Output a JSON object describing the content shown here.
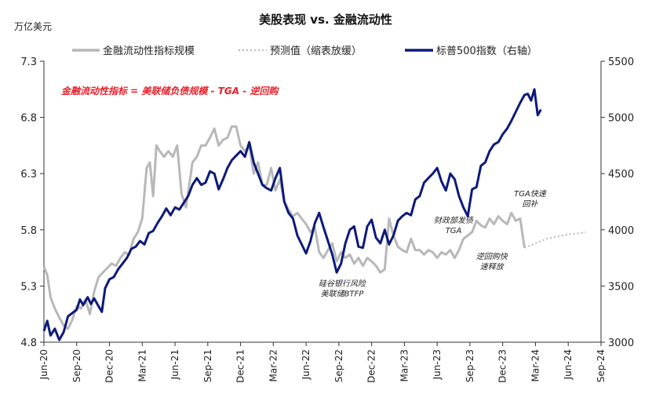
{
  "chart_data": {
    "type": "line",
    "title": "美股表现 vs. 金融流动性",
    "ylabel_left": "万亿美元",
    "legend": [
      "金融流动性指标规模",
      "预测值（缩表放缓）",
      "标普500指数（右轴）"
    ],
    "formula": "金融流动性指标 = 美联储负债规模 - TGA - 逆回购",
    "x_tick_labels": [
      "Jun-20",
      "Sep-20",
      "Dec-20",
      "Mar-21",
      "Jun-21",
      "Sep-21",
      "Dec-21",
      "Mar-22",
      "Jun-22",
      "Sep-22",
      "Dec-22",
      "Mar-23",
      "Jun-23",
      "Sep-23",
      "Dec-23",
      "Mar-24",
      "Jun-24",
      "Sep-24"
    ],
    "y_left": {
      "min": 4.8,
      "max": 7.3,
      "ticks": [
        "4.8",
        "5.3",
        "5.8",
        "6.3",
        "6.8",
        "7.3"
      ]
    },
    "y_right": {
      "min": 3000,
      "max": 5500,
      "ticks": [
        "3000",
        "3500",
        "4000",
        "4500",
        "5000",
        "5500"
      ]
    },
    "x_range_months": [
      0,
      51
    ],
    "series": [
      {
        "name": "金融流动性指标规模",
        "axis": "left",
        "points": [
          [
            0,
            5.47
          ],
          [
            0.3,
            5.4
          ],
          [
            0.6,
            5.2
          ],
          [
            1.0,
            5.1
          ],
          [
            1.4,
            5.02
          ],
          [
            1.8,
            4.95
          ],
          [
            2.2,
            4.92
          ],
          [
            2.6,
            5.0
          ],
          [
            3.0,
            5.12
          ],
          [
            3.4,
            5.1
          ],
          [
            3.8,
            5.18
          ],
          [
            4.2,
            5.05
          ],
          [
            4.6,
            5.25
          ],
          [
            5.0,
            5.38
          ],
          [
            5.4,
            5.42
          ],
          [
            5.8,
            5.46
          ],
          [
            6.2,
            5.5
          ],
          [
            6.6,
            5.48
          ],
          [
            7.0,
            5.55
          ],
          [
            7.4,
            5.6
          ],
          [
            7.8,
            5.58
          ],
          [
            8.2,
            5.72
          ],
          [
            8.6,
            5.78
          ],
          [
            9.0,
            5.9
          ],
          [
            9.4,
            6.35
          ],
          [
            9.7,
            6.4
          ],
          [
            10.0,
            6.1
          ],
          [
            10.3,
            6.55
          ],
          [
            10.6,
            6.5
          ],
          [
            11.0,
            6.45
          ],
          [
            11.4,
            6.5
          ],
          [
            11.8,
            6.45
          ],
          [
            12.2,
            6.55
          ],
          [
            12.6,
            6.12
          ],
          [
            13.0,
            6.0
          ],
          [
            13.3,
            6.2
          ],
          [
            13.6,
            6.4
          ],
          [
            14.0,
            6.45
          ],
          [
            14.4,
            6.55
          ],
          [
            14.8,
            6.55
          ],
          [
            15.2,
            6.62
          ],
          [
            15.6,
            6.7
          ],
          [
            16.0,
            6.55
          ],
          [
            16.4,
            6.6
          ],
          [
            16.8,
            6.62
          ],
          [
            17.2,
            6.72
          ],
          [
            17.6,
            6.72
          ],
          [
            18.0,
            6.55
          ],
          [
            18.4,
            6.5
          ],
          [
            18.8,
            6.55
          ],
          [
            19.2,
            6.3
          ],
          [
            19.6,
            6.4
          ],
          [
            20.0,
            6.2
          ],
          [
            20.4,
            6.2
          ],
          [
            20.8,
            6.35
          ],
          [
            21.2,
            6.15
          ],
          [
            21.6,
            6.25
          ],
          [
            22.0,
            6.05
          ],
          [
            22.4,
            5.98
          ],
          [
            22.8,
            5.92
          ],
          [
            23.2,
            5.95
          ],
          [
            23.6,
            5.9
          ],
          [
            24.0,
            5.85
          ],
          [
            24.4,
            5.78
          ],
          [
            24.8,
            5.82
          ],
          [
            25.2,
            5.6
          ],
          [
            25.6,
            5.55
          ],
          [
            26.0,
            5.62
          ],
          [
            26.4,
            5.68
          ],
          [
            26.8,
            5.52
          ],
          [
            27.2,
            5.6
          ],
          [
            27.6,
            5.55
          ],
          [
            28.0,
            5.58
          ],
          [
            28.4,
            5.5
          ],
          [
            28.8,
            5.55
          ],
          [
            29.2,
            5.48
          ],
          [
            29.6,
            5.55
          ],
          [
            30.0,
            5.52
          ],
          [
            30.4,
            5.48
          ],
          [
            30.8,
            5.42
          ],
          [
            31.2,
            5.45
          ],
          [
            31.6,
            5.9
          ],
          [
            32.0,
            5.75
          ],
          [
            32.4,
            5.65
          ],
          [
            32.8,
            5.62
          ],
          [
            33.2,
            5.6
          ],
          [
            33.6,
            5.72
          ],
          [
            34.0,
            5.62
          ],
          [
            34.4,
            5.62
          ],
          [
            34.8,
            5.58
          ],
          [
            35.2,
            5.62
          ],
          [
            35.6,
            5.6
          ],
          [
            36.0,
            5.55
          ],
          [
            36.4,
            5.6
          ],
          [
            36.8,
            5.58
          ],
          [
            37.2,
            5.62
          ],
          [
            37.6,
            5.55
          ],
          [
            38.0,
            5.62
          ],
          [
            38.4,
            5.72
          ],
          [
            38.8,
            5.75
          ],
          [
            39.2,
            5.78
          ],
          [
            39.6,
            5.88
          ],
          [
            40.0,
            5.84
          ],
          [
            40.4,
            5.82
          ],
          [
            40.8,
            5.9
          ],
          [
            41.2,
            5.85
          ],
          [
            41.6,
            5.92
          ],
          [
            42.0,
            5.88
          ],
          [
            42.4,
            5.85
          ],
          [
            42.8,
            5.95
          ],
          [
            43.2,
            5.88
          ],
          [
            43.6,
            5.9
          ],
          [
            44.0,
            5.64
          ]
        ]
      },
      {
        "name": "预测值（缩表放缓）",
        "axis": "left",
        "points": [
          [
            44.0,
            5.64
          ],
          [
            45.0,
            5.68
          ],
          [
            46.0,
            5.72
          ],
          [
            47.0,
            5.74
          ],
          [
            48.0,
            5.76
          ],
          [
            49.0,
            5.77
          ],
          [
            49.6,
            5.78
          ]
        ]
      },
      {
        "name": "标普500指数（右轴）",
        "axis": "right",
        "points": [
          [
            0,
            3100
          ],
          [
            0.3,
            3190
          ],
          [
            0.6,
            3060
          ],
          [
            1.0,
            3120
          ],
          [
            1.4,
            3020
          ],
          [
            1.8,
            3090
          ],
          [
            2.2,
            3230
          ],
          [
            2.6,
            3260
          ],
          [
            3.0,
            3290
          ],
          [
            3.3,
            3380
          ],
          [
            3.6,
            3330
          ],
          [
            4.0,
            3400
          ],
          [
            4.3,
            3340
          ],
          [
            4.6,
            3390
          ],
          [
            5.0,
            3320
          ],
          [
            5.3,
            3270
          ],
          [
            5.6,
            3480
          ],
          [
            6.0,
            3560
          ],
          [
            6.4,
            3580
          ],
          [
            6.8,
            3650
          ],
          [
            7.2,
            3700
          ],
          [
            7.6,
            3750
          ],
          [
            8.0,
            3830
          ],
          [
            8.4,
            3850
          ],
          [
            8.8,
            3900
          ],
          [
            9.2,
            3870
          ],
          [
            9.6,
            3970
          ],
          [
            10.0,
            3990
          ],
          [
            10.4,
            4060
          ],
          [
            10.8,
            4120
          ],
          [
            11.2,
            4190
          ],
          [
            11.6,
            4130
          ],
          [
            12.0,
            4200
          ],
          [
            12.4,
            4180
          ],
          [
            12.8,
            4240
          ],
          [
            13.2,
            4300
          ],
          [
            13.6,
            4400
          ],
          [
            14.0,
            4460
          ],
          [
            14.4,
            4400
          ],
          [
            14.8,
            4420
          ],
          [
            15.2,
            4520
          ],
          [
            15.6,
            4500
          ],
          [
            16.0,
            4360
          ],
          [
            16.4,
            4450
          ],
          [
            16.8,
            4550
          ],
          [
            17.2,
            4620
          ],
          [
            17.6,
            4660
          ],
          [
            18.0,
            4700
          ],
          [
            18.4,
            4650
          ],
          [
            18.8,
            4780
          ],
          [
            19.2,
            4600
          ],
          [
            19.6,
            4500
          ],
          [
            20.0,
            4400
          ],
          [
            20.4,
            4370
          ],
          [
            20.8,
            4350
          ],
          [
            21.2,
            4460
          ],
          [
            21.6,
            4550
          ],
          [
            22.0,
            4250
          ],
          [
            22.4,
            4150
          ],
          [
            22.8,
            4100
          ],
          [
            23.2,
            3950
          ],
          [
            23.6,
            3870
          ],
          [
            24.0,
            3790
          ],
          [
            24.4,
            3900
          ],
          [
            24.8,
            4060
          ],
          [
            25.2,
            4150
          ],
          [
            25.6,
            4020
          ],
          [
            26.0,
            3900
          ],
          [
            26.4,
            3780
          ],
          [
            26.8,
            3620
          ],
          [
            27.2,
            3700
          ],
          [
            27.6,
            3880
          ],
          [
            28.0,
            4000
          ],
          [
            28.4,
            4030
          ],
          [
            28.8,
            3850
          ],
          [
            29.2,
            3840
          ],
          [
            29.6,
            4030
          ],
          [
            30.0,
            4090
          ],
          [
            30.4,
            3930
          ],
          [
            30.8,
            3880
          ],
          [
            31.2,
            4000
          ],
          [
            31.6,
            3870
          ],
          [
            32.0,
            3950
          ],
          [
            32.4,
            4080
          ],
          [
            32.8,
            4120
          ],
          [
            33.2,
            4150
          ],
          [
            33.6,
            4130
          ],
          [
            34.0,
            4270
          ],
          [
            34.4,
            4300
          ],
          [
            34.8,
            4420
          ],
          [
            35.2,
            4460
          ],
          [
            35.6,
            4500
          ],
          [
            36.0,
            4550
          ],
          [
            36.4,
            4430
          ],
          [
            36.8,
            4350
          ],
          [
            37.2,
            4500
          ],
          [
            37.6,
            4450
          ],
          [
            38.0,
            4300
          ],
          [
            38.4,
            4200
          ],
          [
            38.8,
            4120
          ],
          [
            39.2,
            4360
          ],
          [
            39.6,
            4380
          ],
          [
            40.0,
            4570
          ],
          [
            40.4,
            4600
          ],
          [
            40.8,
            4700
          ],
          [
            41.2,
            4760
          ],
          [
            41.6,
            4780
          ],
          [
            42.0,
            4850
          ],
          [
            42.4,
            4900
          ],
          [
            42.8,
            4970
          ],
          [
            43.2,
            5050
          ],
          [
            43.6,
            5130
          ],
          [
            44.0,
            5200
          ],
          [
            44.3,
            5210
          ],
          [
            44.6,
            5150
          ],
          [
            44.9,
            5250
          ],
          [
            45.2,
            5020
          ],
          [
            45.5,
            5070
          ]
        ]
      }
    ],
    "annotations": [
      {
        "lines": [
          "硅谷银行风险",
          "美联储BTFP"
        ],
        "month": 27.3,
        "value": 5.3,
        "axis": "left",
        "anchor": "middle"
      },
      {
        "lines": [
          "财政部发债",
          "TGA"
        ],
        "month": 37.5,
        "value": 5.86,
        "axis": "left",
        "anchor": "middle"
      },
      {
        "lines": [
          "逆回购快",
          "速释放"
        ],
        "month": 41.0,
        "value": 5.54,
        "axis": "left",
        "anchor": "middle"
      },
      {
        "lines": [
          "TGA快速",
          "回补"
        ],
        "month": 44.5,
        "value": 6.1,
        "axis": "left",
        "anchor": "middle"
      }
    ]
  }
}
